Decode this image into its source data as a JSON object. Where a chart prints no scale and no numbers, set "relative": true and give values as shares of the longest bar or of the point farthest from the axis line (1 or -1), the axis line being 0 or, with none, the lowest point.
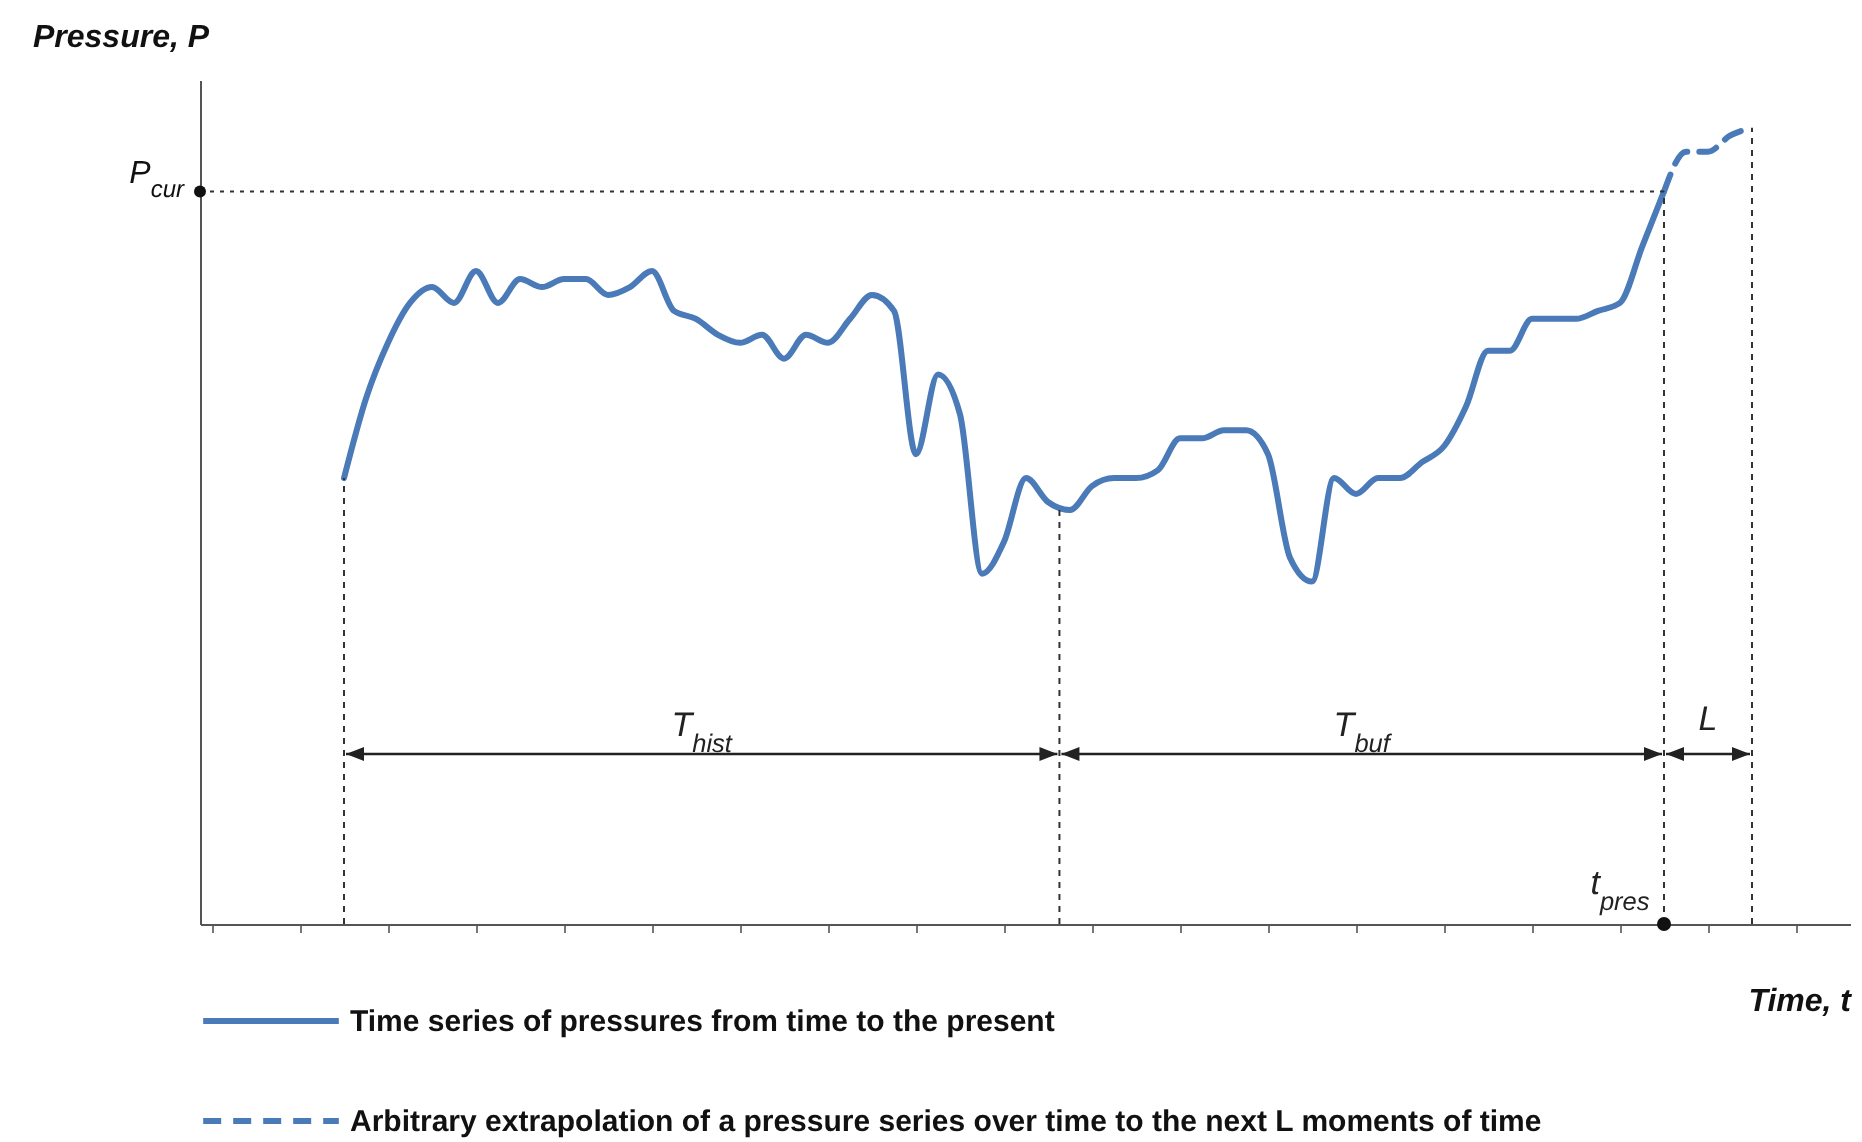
{
  "chart_data": {
    "type": "line",
    "relative": true,
    "xlabel": "Time, t",
    "ylabel": "Pressure, P",
    "categories": [
      null,
      null,
      null,
      null,
      null,
      null,
      null,
      null,
      null,
      null,
      null,
      null,
      null,
      null,
      null,
      null,
      null,
      null,
      null,
      null,
      null,
      null,
      null,
      null,
      null,
      null,
      null,
      null,
      null,
      null,
      null,
      null,
      null,
      null,
      null,
      null,
      null,
      null,
      null,
      null,
      null,
      null,
      null,
      null,
      null,
      null,
      null,
      null,
      null,
      null,
      null,
      null,
      null,
      null,
      null,
      null,
      null,
      null,
      null,
      null,
      null,
      null,
      null,
      null,
      null
    ],
    "series": [
      {
        "name": "Time series of pressures from time to the present",
        "color": "#4a7ab8",
        "line_style": "solid",
        "values": [
          0.56,
          0.66,
          0.73,
          0.78,
          0.8,
          0.78,
          0.82,
          0.78,
          0.81,
          0.8,
          0.81,
          0.81,
          0.79,
          0.8,
          0.82,
          0.77,
          0.76,
          0.74,
          0.73,
          0.74,
          0.71,
          0.74,
          0.73,
          0.76,
          0.79,
          0.77,
          0.59,
          0.69,
          0.64,
          0.44,
          0.48,
          0.56,
          0.53,
          0.52,
          0.55,
          0.56,
          0.56,
          0.57,
          0.61,
          0.61,
          0.62,
          0.62,
          0.59,
          0.46,
          0.43,
          0.56,
          0.54,
          0.56,
          0.56,
          0.58,
          0.6,
          0.65,
          0.72,
          0.72,
          0.76,
          0.76,
          0.76,
          0.77,
          0.78,
          0.85,
          0.92,
          null,
          null,
          null,
          null
        ]
      },
      {
        "name": "Arbitrary extrapolation of a pressure series over time to the next L moments of time",
        "color": "#4a7ab8",
        "line_style": "dashed",
        "values": [
          null,
          null,
          null,
          null,
          null,
          null,
          null,
          null,
          null,
          null,
          null,
          null,
          null,
          null,
          null,
          null,
          null,
          null,
          null,
          null,
          null,
          null,
          null,
          null,
          null,
          null,
          null,
          null,
          null,
          null,
          null,
          null,
          null,
          null,
          null,
          null,
          null,
          null,
          null,
          null,
          null,
          null,
          null,
          null,
          null,
          null,
          null,
          null,
          null,
          null,
          null,
          null,
          null,
          null,
          null,
          null,
          null,
          null,
          null,
          null,
          0.92,
          0.97,
          0.97,
          0.99,
          1
        ]
      }
    ],
    "ref_lines": [
      {
        "axis": "y",
        "value": 0.92,
        "label": "P$_{cur}$",
        "line_style": "dotted",
        "color": "#333333"
      }
    ],
    "annotations": [
      "T$_{hist}$",
      "T$_{buf}$",
      "L",
      "t$_{pres}$"
    ],
    "legend": "bottom"
  }
}
